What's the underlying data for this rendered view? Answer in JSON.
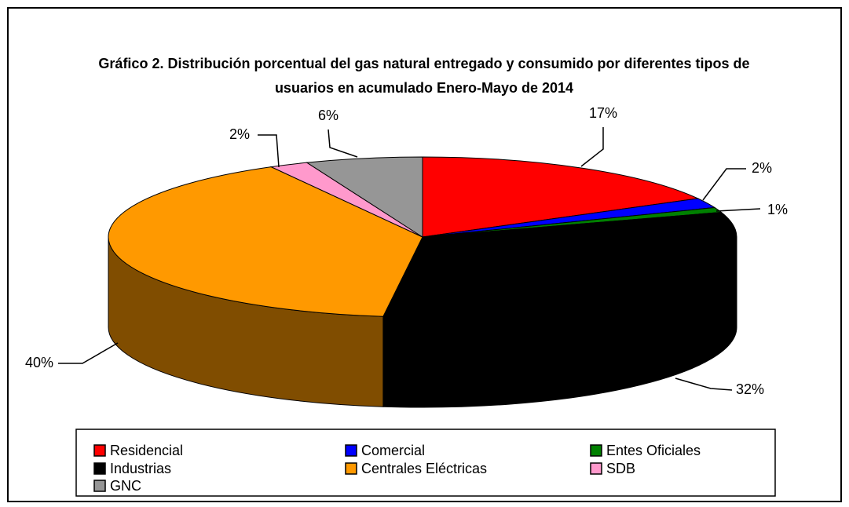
{
  "chart_data": {
    "type": "pie",
    "title": "Gráfico 2. Distribución porcentual del gas natural entregado y consumido por diferentes tipos de usuarios en acumulado Enero-Mayo de 2014",
    "categories": [
      "Residencial",
      "Comercial",
      "Entes Oficiales",
      "Industrias",
      "Centrales Eléctricas",
      "SDB",
      "GNC"
    ],
    "values": [
      17,
      2,
      1,
      32,
      40,
      2,
      6
    ],
    "value_labels": [
      "17%",
      "2%",
      "1%",
      "32%",
      "40%",
      "2%",
      "6%"
    ],
    "colors": [
      "#ff0000",
      "#0000ff",
      "#008000",
      "#000000",
      "#ff9900",
      "#ff99cc",
      "#969696"
    ],
    "three_d": true
  }
}
